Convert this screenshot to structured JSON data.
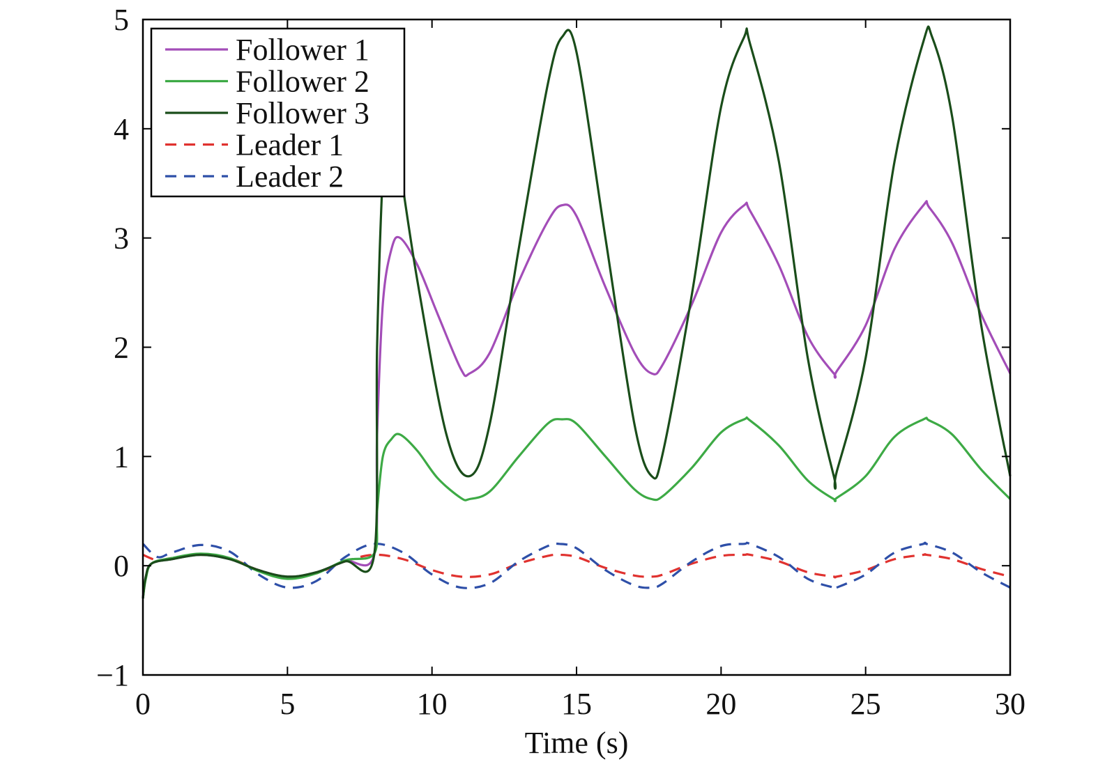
{
  "chart_data": {
    "type": "line",
    "xlabel": "Time (s)",
    "ylabel": "",
    "xlim": [
      0,
      30
    ],
    "ylim": [
      -1,
      5
    ],
    "xticks": [
      0,
      5,
      10,
      15,
      20,
      25,
      30
    ],
    "yticks": [
      -1,
      0,
      1,
      2,
      3,
      4,
      5
    ],
    "xtick_labels": [
      "0",
      "5",
      "10",
      "15",
      "20",
      "25",
      "30"
    ],
    "ytick_labels": [
      "−1",
      "0",
      "1",
      "2",
      "3",
      "4",
      "5"
    ],
    "grid": false,
    "legend_position": "top-left",
    "series": [
      {
        "name": "Follower 1",
        "color": "#a34db8",
        "dash": "solid",
        "x": [
          0,
          0.1,
          0.3,
          1,
          2,
          3,
          4,
          5,
          6,
          7,
          8,
          8.1,
          8.3,
          8.6,
          8.9,
          9.5,
          10.2,
          11,
          11.3,
          12,
          13,
          14,
          14.5,
          15,
          16,
          17,
          17.6,
          18,
          19,
          20,
          20.8,
          21,
          22,
          23,
          23.9,
          24,
          25,
          26,
          27,
          27.2,
          28,
          29,
          30
        ],
        "y": [
          -0.3,
          -0.1,
          0.02,
          0.06,
          0.1,
          0.06,
          -0.04,
          -0.1,
          -0.06,
          0.04,
          0.1,
          1.2,
          2.4,
          2.9,
          3.0,
          2.75,
          2.3,
          1.8,
          1.76,
          1.95,
          2.6,
          3.15,
          3.3,
          3.2,
          2.55,
          1.95,
          1.76,
          1.85,
          2.4,
          3.05,
          3.3,
          3.25,
          2.75,
          2.1,
          1.76,
          1.78,
          2.2,
          2.9,
          3.3,
          3.28,
          2.95,
          2.3,
          1.76
        ]
      },
      {
        "name": "Follower 2",
        "color": "#3daa45",
        "dash": "solid",
        "x": [
          0,
          0.1,
          0.3,
          1,
          2,
          3,
          4,
          5,
          6,
          7,
          8,
          8.1,
          8.3,
          8.6,
          8.9,
          9.5,
          10.2,
          11,
          11.3,
          12,
          13,
          14,
          14.5,
          15,
          16,
          17,
          17.6,
          18,
          19,
          20,
          20.8,
          21,
          22,
          23,
          23.9,
          24,
          25,
          26,
          27,
          27.2,
          28,
          29,
          30
        ],
        "y": [
          -0.3,
          -0.12,
          0.02,
          0.07,
          0.11,
          0.07,
          -0.05,
          -0.12,
          -0.07,
          0.05,
          0.11,
          0.5,
          1.0,
          1.16,
          1.2,
          1.05,
          0.8,
          0.62,
          0.61,
          0.68,
          1.0,
          1.3,
          1.34,
          1.3,
          1.0,
          0.7,
          0.61,
          0.64,
          0.9,
          1.22,
          1.34,
          1.33,
          1.1,
          0.78,
          0.61,
          0.62,
          0.82,
          1.18,
          1.34,
          1.33,
          1.2,
          0.88,
          0.61
        ]
      },
      {
        "name": "Follower 3",
        "color": "#1a4d1a",
        "dash": "solid",
        "x": [
          0,
          0.1,
          0.3,
          1,
          2,
          3,
          4,
          5,
          6,
          7,
          8,
          8.1,
          8.3,
          8.5,
          8.8,
          9.5,
          10.5,
          11.3,
          12,
          13,
          14,
          14.5,
          15,
          16,
          17,
          17.6,
          18,
          19,
          20,
          20.8,
          21,
          22,
          23,
          23.9,
          24,
          25,
          26,
          27,
          27.3,
          28,
          29,
          30
        ],
        "y": [
          -0.3,
          -0.1,
          0.02,
          0.06,
          0.1,
          0.06,
          -0.04,
          -0.1,
          -0.06,
          0.04,
          0.1,
          2.0,
          3.6,
          4.2,
          3.8,
          2.6,
          1.2,
          0.82,
          1.3,
          2.9,
          4.4,
          4.84,
          4.7,
          3.0,
          1.3,
          0.82,
          1.05,
          2.5,
          4.2,
          4.84,
          4.78,
          3.7,
          1.9,
          0.82,
          0.86,
          1.9,
          3.7,
          4.8,
          4.84,
          4.1,
          2.2,
          0.82
        ]
      },
      {
        "name": "Leader 1",
        "color": "#e0322f",
        "dash": "dashed",
        "x": [
          0,
          0.5,
          1,
          2,
          3,
          4,
          5,
          6,
          7,
          8,
          9,
          10,
          11,
          12,
          13,
          14,
          14.4,
          15,
          16,
          17,
          17.6,
          18,
          19,
          20,
          20.8,
          21,
          22,
          23,
          23.9,
          24,
          25,
          26,
          27,
          27.1,
          28,
          29,
          30
        ],
        "y": [
          0.1,
          0.05,
          0.07,
          0.1,
          0.07,
          -0.04,
          -0.1,
          -0.07,
          0.04,
          0.1,
          0.06,
          -0.04,
          -0.1,
          -0.08,
          0.02,
          0.09,
          0.1,
          0.08,
          -0.02,
          -0.09,
          -0.1,
          -0.08,
          0.02,
          0.09,
          0.1,
          0.1,
          0.04,
          -0.06,
          -0.1,
          -0.1,
          -0.04,
          0.06,
          0.1,
          0.1,
          0.06,
          -0.03,
          -0.1
        ]
      },
      {
        "name": "Leader 2",
        "color": "#2e4fa8",
        "dash": "dashed",
        "x": [
          0,
          0.5,
          1,
          2,
          3,
          4,
          5,
          6,
          7,
          8,
          9,
          10,
          11,
          12,
          13,
          14,
          14.4,
          15,
          16,
          17,
          17.6,
          18,
          19,
          20,
          20.8,
          21,
          22,
          23,
          23.9,
          24,
          25,
          26,
          27,
          27.1,
          28,
          29,
          30
        ],
        "y": [
          0.2,
          0.08,
          0.12,
          0.19,
          0.13,
          -0.08,
          -0.2,
          -0.14,
          0.08,
          0.2,
          0.12,
          -0.08,
          -0.2,
          -0.16,
          0.04,
          0.18,
          0.2,
          0.16,
          -0.04,
          -0.18,
          -0.2,
          -0.16,
          0.04,
          0.18,
          0.2,
          0.2,
          0.08,
          -0.12,
          -0.2,
          -0.2,
          -0.08,
          0.12,
          0.2,
          0.2,
          0.12,
          -0.06,
          -0.2
        ]
      }
    ]
  }
}
